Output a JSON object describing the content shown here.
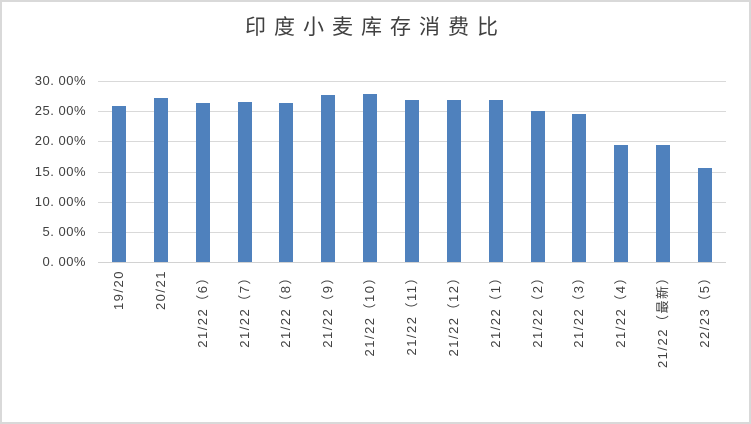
{
  "chart_data": {
    "type": "bar",
    "title": "印度小麦库存消费比",
    "categories": [
      "19/20",
      "20/21",
      "21/22（6）",
      "21/22（7）",
      "21/22（8）",
      "21/22（9）",
      "21/22（10）",
      "21/22（11）",
      "21/22（12）",
      "21/22（1）",
      "21/22（2）",
      "21/22（3）",
      "21/22（4）",
      "21/22（最新）",
      "22/23（5）"
    ],
    "values": [
      25.9,
      27.2,
      26.3,
      26.5,
      26.3,
      27.7,
      27.8,
      26.9,
      26.8,
      26.8,
      25.1,
      24.6,
      19.4,
      19.4,
      15.6
    ],
    "unit": "%",
    "y_tick_values": [
      0,
      5,
      10,
      15,
      20,
      25,
      30
    ],
    "y_tick_labels": [
      "0. 00%",
      "5. 00%",
      "10. 00%",
      "15. 00%",
      "20. 00%",
      "25. 00%",
      "30. 00%"
    ],
    "ylim": [
      0,
      30
    ],
    "xlabel": "",
    "ylabel": "",
    "grid": "horizontal",
    "legend": "none",
    "bar_color": "#4F81BD",
    "gridline_color": "#D9D9D9",
    "axis_line_color": "#D2D2D2",
    "axis_text_color": "#404040",
    "title_color": "#404040",
    "frame_border_color": "#D9D9D9",
    "background": "#FFFFFF"
  }
}
